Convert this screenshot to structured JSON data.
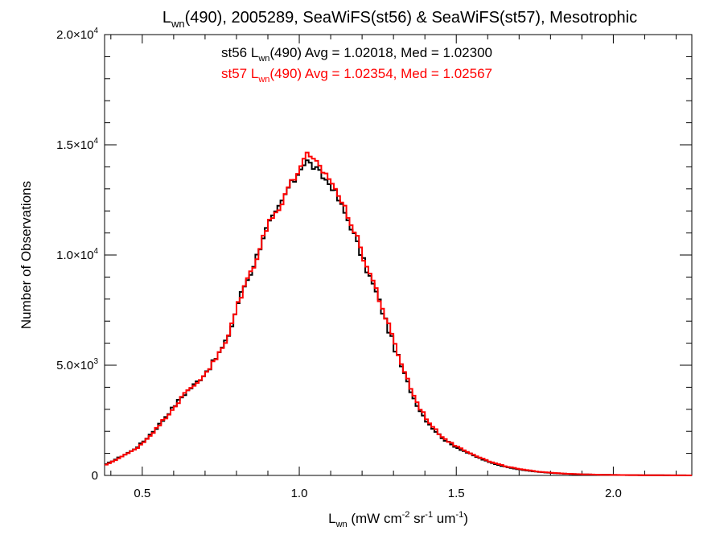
{
  "chart_data": {
    "type": "line",
    "title": {
      "prefix": "L",
      "sub": "wn",
      "rest": "(490), 2005289, SeaWiFS(st56) & SeaWiFS(st57), Mesotrophic"
    },
    "xlabel": {
      "prefix": "L",
      "sub": "wn",
      "p1": " (mW cm",
      "s1": "-2",
      "p2": " sr",
      "s2": "-1",
      "p3": " um",
      "s3": "-1",
      "p4": ")"
    },
    "ylabel": "Number of Observations",
    "xlim": [
      0.38,
      2.25
    ],
    "ylim": [
      0,
      20000
    ],
    "x_ticks": [
      {
        "value": 0.5,
        "label": "0.5"
      },
      {
        "value": 1.0,
        "label": "1.0"
      },
      {
        "value": 1.5,
        "label": "1.5"
      },
      {
        "value": 2.0,
        "label": "2.0"
      }
    ],
    "y_ticks": [
      {
        "value": 0,
        "mant": "0",
        "exp": ""
      },
      {
        "value": 5000,
        "mant": "5.0×10",
        "exp": "3"
      },
      {
        "value": 10000,
        "mant": "1.0×10",
        "exp": "4"
      },
      {
        "value": 15000,
        "mant": "1.5×10",
        "exp": "4"
      },
      {
        "value": 20000,
        "mant": "2.0×10",
        "exp": "4"
      }
    ],
    "bin_width": 0.01,
    "x": [
      0.38,
      0.4,
      0.42,
      0.44,
      0.46,
      0.48,
      0.5,
      0.52,
      0.54,
      0.56,
      0.58,
      0.6,
      0.62,
      0.64,
      0.66,
      0.68,
      0.7,
      0.72,
      0.74,
      0.76,
      0.78,
      0.8,
      0.82,
      0.84,
      0.86,
      0.88,
      0.9,
      0.92,
      0.94,
      0.96,
      0.98,
      1.0,
      1.02,
      1.04,
      1.06,
      1.08,
      1.1,
      1.12,
      1.14,
      1.16,
      1.18,
      1.2,
      1.22,
      1.24,
      1.26,
      1.28,
      1.3,
      1.32,
      1.34,
      1.36,
      1.38,
      1.4,
      1.42,
      1.44,
      1.46,
      1.48,
      1.5,
      1.55,
      1.6,
      1.65,
      1.7,
      1.75,
      1.8,
      1.85,
      1.9,
      1.95,
      2.0,
      2.05,
      2.1,
      2.15,
      2.2,
      2.25
    ],
    "series": [
      {
        "name": "st56",
        "color": "#000000",
        "legend": {
          "prefix": "st56 L",
          "sub": "wn",
          "rest": "(490) Avg = 1.02018, Med = 1.02300"
        },
        "values": [
          500,
          650,
          800,
          950,
          1100,
          1300,
          1550,
          1850,
          2150,
          2500,
          2850,
          3200,
          3550,
          3850,
          4100,
          4400,
          4750,
          5100,
          5550,
          6000,
          6800,
          7850,
          8600,
          9200,
          9950,
          10850,
          11450,
          11850,
          12400,
          13050,
          13400,
          14000,
          14250,
          14000,
          13700,
          13400,
          13100,
          12500,
          11900,
          11300,
          10500,
          9700,
          9000,
          8300,
          7450,
          6600,
          5750,
          4950,
          4200,
          3500,
          2950,
          2500,
          2150,
          1850,
          1600,
          1400,
          1250,
          900,
          600,
          400,
          260,
          170,
          110,
          70,
          45,
          30,
          20,
          15,
          10,
          6,
          3,
          1
        ]
      },
      {
        "name": "st57",
        "color": "#ff0000",
        "legend": {
          "prefix": "st57 L",
          "sub": "wn",
          "rest": "(490) Avg = 1.02354, Med = 1.02567"
        },
        "values": [
          480,
          630,
          780,
          930,
          1080,
          1270,
          1520,
          1820,
          2120,
          2470,
          2820,
          3170,
          3520,
          3830,
          4080,
          4380,
          4720,
          5080,
          5520,
          5980,
          6780,
          7830,
          8580,
          9180,
          9950,
          10850,
          11500,
          11900,
          12450,
          13100,
          13450,
          14100,
          14500,
          14250,
          14000,
          13650,
          13300,
          12700,
          12100,
          11500,
          10700,
          9900,
          9150,
          8450,
          7600,
          6750,
          5900,
          5100,
          4350,
          3600,
          3050,
          2600,
          2200,
          1900,
          1650,
          1450,
          1300,
          950,
          630,
          420,
          280,
          180,
          120,
          75,
          48,
          32,
          22,
          16,
          11,
          7,
          4,
          2
        ]
      }
    ]
  }
}
